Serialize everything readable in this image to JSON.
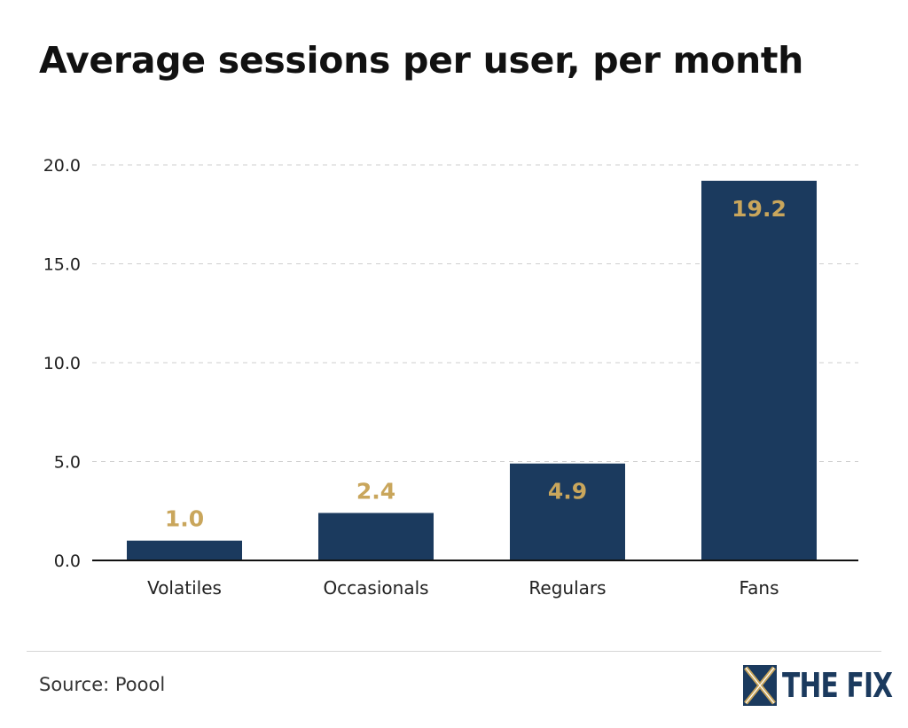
{
  "source": "Source: Poool",
  "brand": {
    "name": "THE FIX",
    "logo_icon": "the-fix-x-mark"
  },
  "colors": {
    "bar": "#1b3a5e",
    "data_label": "#c9a65c",
    "data_label_inside": "#c9a65c",
    "grid": "#cfcfcf",
    "axis": "#111111"
  },
  "chart_data": {
    "type": "bar",
    "title": "Average sessions per user, per month",
    "xlabel": "",
    "ylabel": "",
    "categories": [
      "Volatiles",
      "Occasionals",
      "Regulars",
      "Fans"
    ],
    "values": [
      1.0,
      2.4,
      4.9,
      19.2
    ],
    "value_labels": [
      "1.0",
      "2.4",
      "4.9",
      "19.2"
    ],
    "ylim": [
      0,
      20
    ],
    "yticks": [
      "0.0",
      "5.0",
      "10.0",
      "15.0",
      "20.0"
    ],
    "grid": true,
    "legend": "none"
  }
}
